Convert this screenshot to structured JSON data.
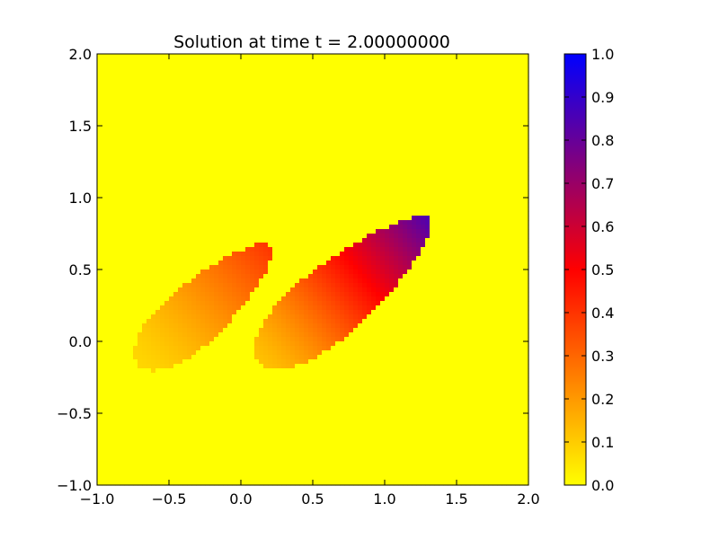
{
  "chart_data": {
    "type": "heatmap",
    "title": "Solution at time t =     2.00000000",
    "xlabel": "",
    "ylabel": "",
    "xlim": [
      -1.0,
      2.0
    ],
    "ylim": [
      -1.0,
      2.0
    ],
    "x_ticks": [
      "−1.0",
      "−0.5",
      "0.0",
      "0.5",
      "1.0",
      "1.5",
      "2.0"
    ],
    "y_ticks": [
      "−1.0",
      "−0.5",
      "0.0",
      "0.5",
      "1.0",
      "1.5",
      "2.0"
    ],
    "x_tick_values": [
      -1.0,
      -0.5,
      0.0,
      0.5,
      1.0,
      1.5,
      2.0
    ],
    "y_tick_values": [
      -1.0,
      -0.5,
      0.0,
      0.5,
      1.0,
      1.5,
      2.0
    ],
    "grid": false,
    "colorbar": {
      "range": [
        0.0,
        1.0
      ],
      "tick_values": [
        0.0,
        0.1,
        0.2,
        0.3,
        0.4,
        0.5,
        0.6,
        0.7,
        0.8,
        0.9,
        1.0
      ],
      "tick_labels": [
        "0.0",
        "0.1",
        "0.2",
        "0.3",
        "0.4",
        "0.5",
        "0.6",
        "0.7",
        "0.8",
        "0.9",
        "1.0"
      ],
      "colors": [
        "#ffff00",
        "#ff0000",
        "#0000ff"
      ]
    },
    "background_value": 0.0,
    "blobs": [
      {
        "name": "",
        "center": [
          -0.25,
          0.25
        ],
        "major_axis_angle_deg": 42,
        "semi_major": 0.62,
        "semi_minor": 0.22,
        "peak": [
          0.08,
          0.58
        ],
        "peak_value": 0.4,
        "tail_value": 0.08
      },
      {
        "name": "",
        "center": [
          0.72,
          0.35
        ],
        "major_axis_angle_deg": 40,
        "semi_major": 0.78,
        "semi_minor": 0.26,
        "peak": [
          1.12,
          0.8
        ],
        "peak_value": 0.85,
        "tail_value": 0.12
      }
    ]
  }
}
